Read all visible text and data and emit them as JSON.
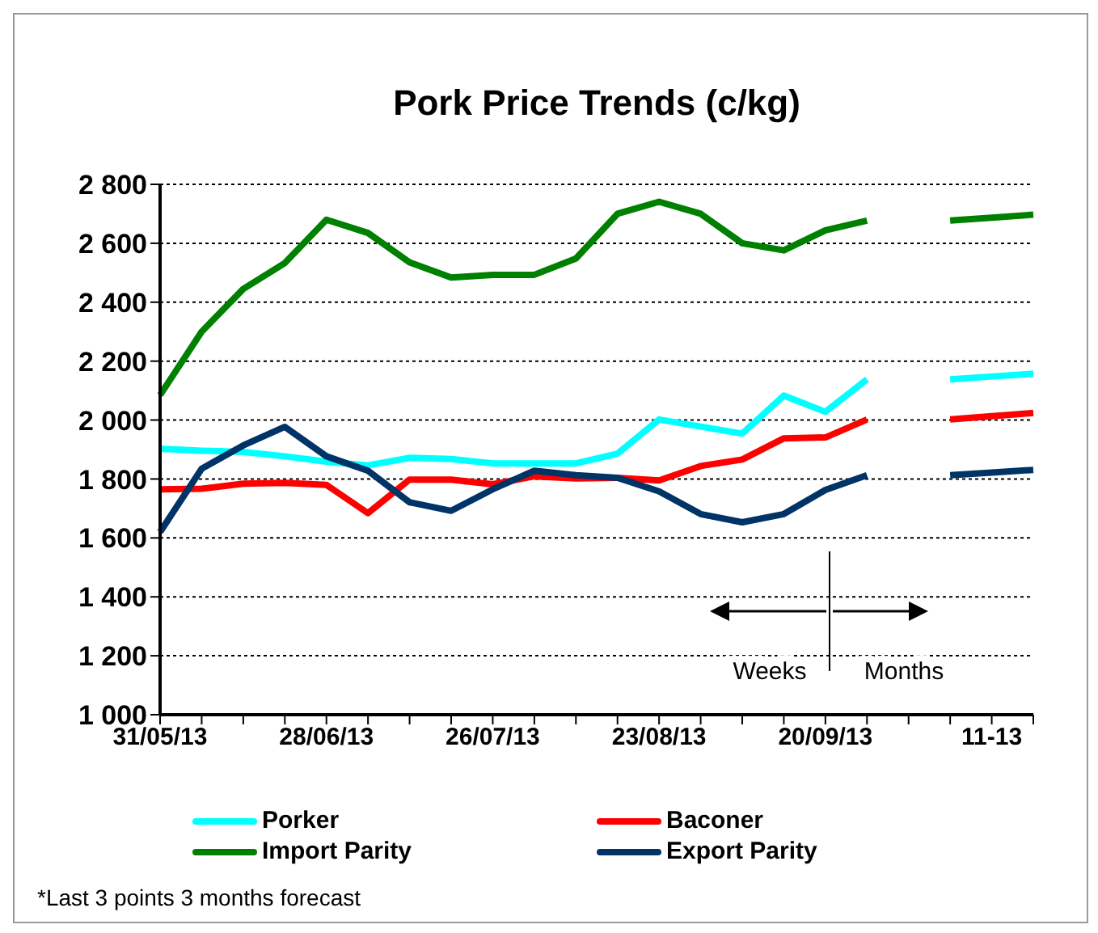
{
  "chart_data": {
    "type": "line",
    "title": "Pork Price Trends (c/kg)",
    "categories": [
      "31/05/13",
      null,
      null,
      null,
      "28/06/13",
      null,
      null,
      null,
      "26/07/13",
      null,
      null,
      null,
      "23/08/13",
      null,
      null,
      null,
      "20/09/13",
      null,
      null,
      null,
      "11-13",
      null
    ],
    "series": [
      {
        "name": "Porker",
        "color": "#00ffff",
        "values": [
          1903,
          1896,
          1892,
          1877,
          1859,
          1846,
          1872,
          1868,
          1853,
          1853,
          1853,
          1886,
          2002,
          1978,
          1954,
          2083,
          2028,
          2138,
          null,
          2138,
          2148,
          2157
        ]
      },
      {
        "name": "Baconer",
        "color": "#ff0000",
        "values": [
          1765,
          1767,
          1784,
          1787,
          1780,
          1684,
          1798,
          1798,
          1782,
          1809,
          1802,
          1804,
          1795,
          1844,
          1866,
          1938,
          1941,
          2002,
          null,
          2002,
          2013,
          2024
        ]
      },
      {
        "name": "Import Parity",
        "color": "#008000",
        "values": [
          2085,
          2300,
          2445,
          2533,
          2680,
          2635,
          2535,
          2484,
          2493,
          2493,
          2548,
          2700,
          2741,
          2700,
          2600,
          2576,
          2644,
          2677,
          null,
          2677,
          2687,
          2697
        ]
      },
      {
        "name": "Export Parity",
        "color": "#003366",
        "values": [
          1620,
          1835,
          1914,
          1977,
          1877,
          1828,
          1721,
          1692,
          1765,
          1828,
          1813,
          1804,
          1758,
          1681,
          1653,
          1681,
          1763,
          1813,
          null,
          1813,
          1822,
          1831
        ]
      }
    ],
    "ylim": [
      1000,
      2800
    ],
    "yticks": [
      {
        "value": 1000,
        "label": "1 000"
      },
      {
        "value": 1200,
        "label": "1 200"
      },
      {
        "value": 1400,
        "label": "1 400"
      },
      {
        "value": 1600,
        "label": "1 600"
      },
      {
        "value": 1800,
        "label": "1 800"
      },
      {
        "value": 2000,
        "label": "2 000"
      },
      {
        "value": 2200,
        "label": "2 200"
      },
      {
        "value": 2400,
        "label": "2 400"
      },
      {
        "value": 2600,
        "label": "2 600"
      },
      {
        "value": 2800,
        "label": "2 800"
      }
    ],
    "grid": "y",
    "legend": "bottom",
    "marker": "none",
    "line_style": "solid",
    "annotations": [
      "Weeks",
      "Months",
      "*Last 3 points 3 months forecast"
    ]
  }
}
